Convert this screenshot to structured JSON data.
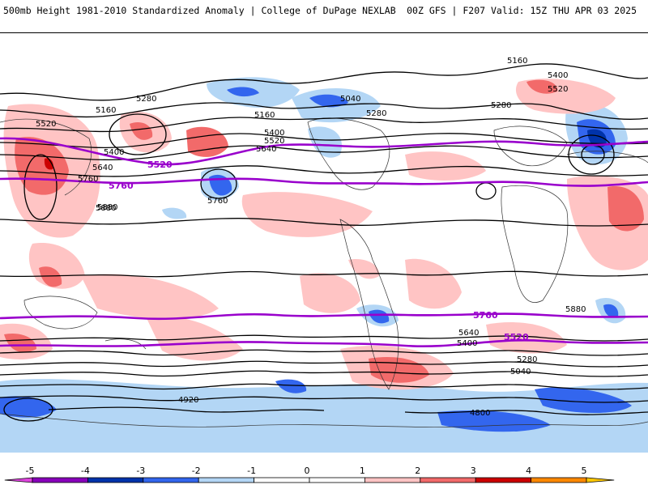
{
  "header": {
    "title_left": "500mb Height 1981-2010 Standardized Anomaly | College of DuPage NEXLAB",
    "title_right": "00Z GFS | F207 Valid: 15Z THU APR 03 2025"
  },
  "colors": {
    "contour": "#000000",
    "highlight_contour": "#9900cc",
    "coast": "#333333"
  },
  "colorbar": {
    "ticks": [
      "-5",
      "-4",
      "-3",
      "-2",
      "-1",
      "0",
      "1",
      "2",
      "3",
      "4",
      "5"
    ],
    "bins": [
      {
        "from": -5.5,
        "to": -5,
        "color": "#dd44dd"
      },
      {
        "from": -5,
        "to": -4,
        "color": "#8800bb"
      },
      {
        "from": -4,
        "to": -3,
        "color": "#0033aa"
      },
      {
        "from": -3,
        "to": -2,
        "color": "#3366ee"
      },
      {
        "from": -2,
        "to": -1,
        "color": "#b3d6f5"
      },
      {
        "from": -1,
        "to": 0,
        "color": "#ffffff"
      },
      {
        "from": 0,
        "to": 1,
        "color": "#ffffff"
      },
      {
        "from": 1,
        "to": 2,
        "color": "#ffc4c4"
      },
      {
        "from": 2,
        "to": 3,
        "color": "#f26a6a"
      },
      {
        "from": 3,
        "to": 4,
        "color": "#cc0000"
      },
      {
        "from": 4,
        "to": 5,
        "color": "#ff8800"
      },
      {
        "from": 5,
        "to": 5.5,
        "color": "#ffc800"
      }
    ]
  },
  "contour_labels": [
    {
      "text": "5160",
      "cls": "lbl"
    },
    {
      "text": "5280",
      "cls": "lbl"
    },
    {
      "text": "5520",
      "cls": "lbl"
    },
    {
      "text": "5400",
      "cls": "lbl"
    },
    {
      "text": "5640",
      "cls": "lbl"
    },
    {
      "text": "5760",
      "cls": "lbl"
    },
    {
      "text": "5880",
      "cls": "lbl"
    },
    {
      "text": "5520",
      "cls": "plbl"
    },
    {
      "text": "5760",
      "cls": "plbl"
    },
    {
      "text": "5160",
      "cls": "lbl"
    },
    {
      "text": "5400",
      "cls": "lbl"
    },
    {
      "text": "5520",
      "cls": "lbl"
    },
    {
      "text": "5640",
      "cls": "lbl"
    },
    {
      "text": "5040",
      "cls": "lbl"
    },
    {
      "text": "5280",
      "cls": "lbl"
    },
    {
      "text": "5760",
      "cls": "lbl"
    },
    {
      "text": "5880",
      "cls": "lbl"
    },
    {
      "text": "5160",
      "cls": "lbl"
    },
    {
      "text": "5400",
      "cls": "lbl"
    },
    {
      "text": "5280",
      "cls": "lbl"
    },
    {
      "text": "5520",
      "cls": "lbl"
    },
    {
      "text": "5040",
      "cls": "lbl"
    },
    {
      "text": "4920",
      "cls": "lbl"
    },
    {
      "text": "4800",
      "cls": "lbl"
    },
    {
      "text": "5760",
      "cls": "plbl"
    },
    {
      "text": "5520",
      "cls": "plbl"
    },
    {
      "text": "5880",
      "cls": "lbl"
    },
    {
      "text": "5640",
      "cls": "lbl"
    },
    {
      "text": "5400",
      "cls": "lbl"
    },
    {
      "text": "5280",
      "cls": "lbl"
    }
  ]
}
